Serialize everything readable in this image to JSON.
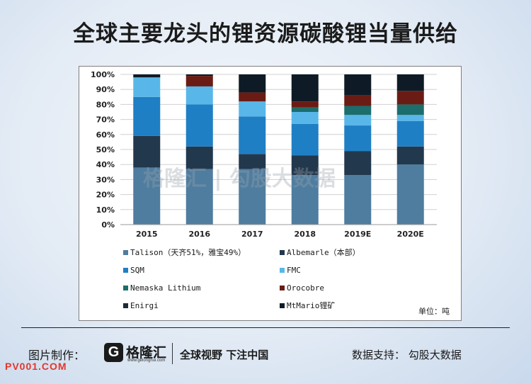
{
  "title": "全球主要龙头的锂资源碳酸锂当量供给",
  "chart_data": {
    "type": "bar",
    "stacked": true,
    "categories": [
      "2015",
      "2016",
      "2017",
      "2018",
      "2019E",
      "2020E"
    ],
    "yticks": [
      "0%",
      "10%",
      "20%",
      "30%",
      "40%",
      "50%",
      "60%",
      "70%",
      "80%",
      "90%",
      "100%"
    ],
    "ylim": [
      0,
      100
    ],
    "legend_position": "bottom",
    "series": [
      {
        "name": "Talison（天齐51%，雅宝49%）",
        "color": "#4f7da0",
        "values": [
          38,
          37,
          37,
          33,
          33,
          40
        ]
      },
      {
        "name": "Albemarle（本部）",
        "color": "#22384d",
        "values": [
          21,
          15,
          10,
          13,
          16,
          12
        ]
      },
      {
        "name": "SQM",
        "color": "#1f7fc4",
        "values": [
          26,
          28,
          25,
          21,
          17,
          17
        ]
      },
      {
        "name": "FMC",
        "color": "#58b7e8",
        "values": [
          13,
          12,
          10,
          8,
          7,
          4
        ]
      },
      {
        "name": "Nemaska Lithium",
        "color": "#1c6e6c",
        "values": [
          0,
          0,
          0,
          3,
          6,
          7
        ]
      },
      {
        "name": "Orocobre",
        "color": "#6a1c14",
        "values": [
          0,
          7,
          6,
          4,
          7,
          9
        ]
      },
      {
        "name": "Enirgi",
        "color": "#1c2b39",
        "values": [
          0,
          0,
          0,
          0,
          0,
          0
        ]
      },
      {
        "name": "MtMario锂矿",
        "color": "#0e1b27",
        "values": [
          2,
          1,
          12,
          18,
          14,
          11
        ]
      }
    ],
    "unit_note": "单位：吨"
  },
  "footer": {
    "label": "图片制作：",
    "logo_mark": "G",
    "logo_name": "格隆汇",
    "logo_url": "www.gelonghui.com",
    "slogan": "全球视野 下注中国",
    "support": "数据支持：  勾股大数据"
  },
  "watermark": "格隆汇 | 勾股大数据",
  "site": "PV001.COM"
}
